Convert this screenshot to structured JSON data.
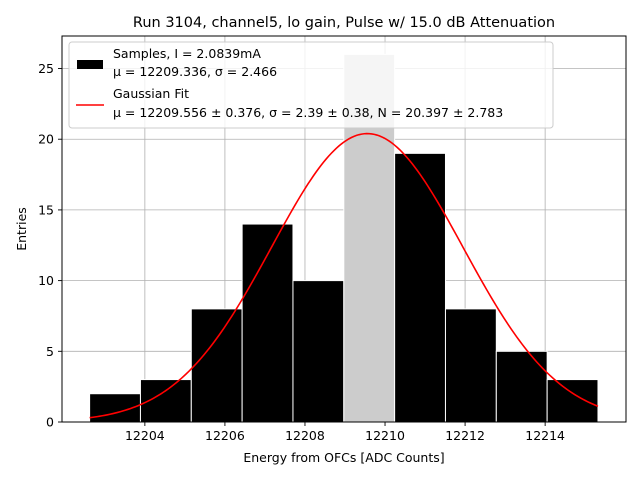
{
  "chart_data": {
    "type": "bar",
    "title": "Run 3104, channel5, lo gain, Pulse w/ 15.0 dB Attenuation",
    "xlabel": "Energy from OFCs [ADC Counts]",
    "ylabel": "Entries",
    "xlim": [
      12201.93,
      12216.02
    ],
    "ylim": [
      0,
      27.3
    ],
    "x_ticks": [
      12204,
      12206,
      12208,
      12210,
      12212,
      12214
    ],
    "x_tick_labels": [
      "12204",
      "12206",
      "12208",
      "12210",
      "12212",
      "12214"
    ],
    "y_ticks": [
      0,
      5,
      10,
      15,
      20,
      25
    ],
    "y_tick_labels": [
      "0",
      "5",
      "10",
      "15",
      "20",
      "25"
    ],
    "grid": true,
    "bin_edges": [
      12202.62,
      12203.89,
      12205.16,
      12206.43,
      12207.7,
      12208.97,
      12210.24,
      12211.51,
      12212.78,
      12214.05,
      12215.32
    ],
    "counts": [
      2,
      3,
      8,
      14,
      10,
      26,
      19,
      8,
      5,
      3
    ],
    "series": [
      {
        "name": "Samples, I = 2.0839mA",
        "stats": "μ = 12209.336, σ = 2.466",
        "color": "#000000",
        "highlight_color": "#cccccc",
        "highlight_bin": 5
      },
      {
        "name": "Gaussian Fit",
        "stats": "μ = 12209.556 ± 0.376, σ = 2.39 ± 0.38, N = 20.397 ± 2.783",
        "color": "#ff0000",
        "mu": 12209.556,
        "sigma": 2.39,
        "amplitude": 20.397,
        "x_range": [
          12202.62,
          12215.32
        ]
      }
    ],
    "legend_position": "top-left"
  }
}
